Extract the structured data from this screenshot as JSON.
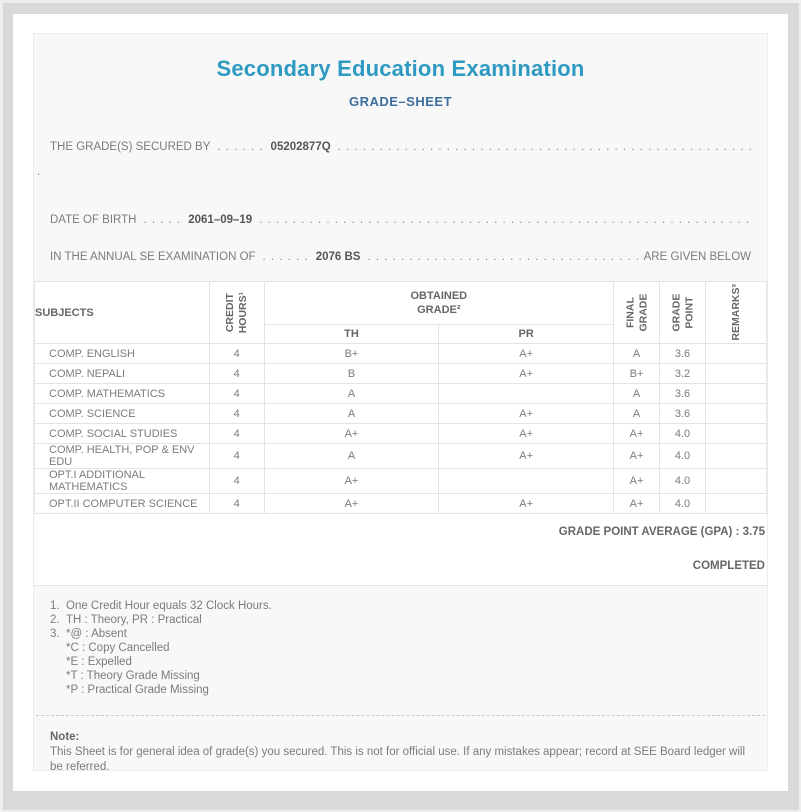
{
  "header": {
    "title": "Secondary Education Examination",
    "subtitle": "GRADE–SHEET"
  },
  "student": {
    "secured_by_label": "THE GRADE(S) SECURED BY",
    "secured_by_dots": ". . . . . .",
    "secured_by_value": "05202877Q",
    "secured_by_trail": ". . . . . . . . . . . . . . . . . . . . . . . . . . . . . . . . . . . . . . . . . . . . . . . . . . . . . . . . . . . . . . . . . . . . . . . . . . . . . . . . . . . . . . . . . . . . . . . . . . . . . . . . . . . . . . . .",
    "continuation_dot": ".",
    "dob_label": "DATE OF BIRTH",
    "dob_dots": ". . . . .",
    "dob_value": "2061–09–19",
    "dob_trail": ". . . . . . . . . . . . . . . . . . . . . . . . . . . . . . . . . . . . . . . . . . . . . . . . . . . . . . . . . . . . . . . . . . . . . . . . . . . . . . . . . . . . . . . . . . . . . . . . . . . . . . . . . . . . . . . .",
    "exam_label": "IN THE ANNUAL SE EXAMINATION OF",
    "exam_dots": ". . . . . .",
    "exam_value": "2076 BS",
    "exam_trail": ". . . . . . . . . . . . . . . . . . . . . . . . . . . . . . . . . . . . . . . . . . . . . . . . . . . . . . . . . . . . . . . . . . . . . . . . . . . . . . . . . . . . . . . . . . . .",
    "exam_suffix": "ARE GIVEN BELOW"
  },
  "table": {
    "headers": {
      "subjects": "SUBJECTS",
      "credit_hours": "CREDIT\nHOURS¹",
      "obtained_grade": "OBTAINED\nGRADE²",
      "th": "TH",
      "pr": "PR",
      "final_grade": "FINAL\nGRADE",
      "grade_point": "GRADE\nPOINT",
      "remarks": "REMARKS³"
    },
    "rows": [
      {
        "subject": "COMP. ENGLISH",
        "credit": "4",
        "th": "B+",
        "pr": "A+",
        "final": "A",
        "gp": "3.6",
        "remarks": ""
      },
      {
        "subject": "COMP. NEPALI",
        "credit": "4",
        "th": "B",
        "pr": "A+",
        "final": "B+",
        "gp": "3.2",
        "remarks": ""
      },
      {
        "subject": "COMP. MATHEMATICS",
        "credit": "4",
        "th": "A",
        "pr": "",
        "final": "A",
        "gp": "3.6",
        "remarks": ""
      },
      {
        "subject": "COMP. SCIENCE",
        "credit": "4",
        "th": "A",
        "pr": "A+",
        "final": "A",
        "gp": "3.6",
        "remarks": ""
      },
      {
        "subject": "COMP. SOCIAL STUDIES",
        "credit": "4",
        "th": "A+",
        "pr": "A+",
        "final": "A+",
        "gp": "4.0",
        "remarks": ""
      },
      {
        "subject": "COMP. HEALTH, POP & ENV EDU",
        "credit": "4",
        "th": "A",
        "pr": "A+",
        "final": "A+",
        "gp": "4.0",
        "remarks": ""
      },
      {
        "subject": "OPT.I ADDITIONAL MATHEMATICS",
        "credit": "4",
        "th": "A+",
        "pr": "",
        "final": "A+",
        "gp": "4.0",
        "remarks": ""
      },
      {
        "subject": "OPT.II COMPUTER SCIENCE",
        "credit": "4",
        "th": "A+",
        "pr": "A+",
        "final": "A+",
        "gp": "4.0",
        "remarks": ""
      }
    ]
  },
  "summary": {
    "gpa_label": "GRADE POINT AVERAGE (GPA) :",
    "gpa_value": "3.75",
    "status": "COMPLETED"
  },
  "footnotes": [
    {
      "num": "1.",
      "text": "One Credit Hour equals 32 Clock Hours."
    },
    {
      "num": "2.",
      "text": "TH : Theory, PR : Practical"
    },
    {
      "num": "3.",
      "text": "*@ : Absent"
    },
    {
      "num": "",
      "text": "*C : Copy Cancelled"
    },
    {
      "num": "",
      "text": "*E : Expelled"
    },
    {
      "num": "",
      "text": "*T : Theory Grade Missing"
    },
    {
      "num": "",
      "text": "*P : Practical Grade Missing"
    }
  ],
  "note": {
    "heading": "Note:",
    "text": "This Sheet is for general idea of grade(s) you secured. This is not for official use. If any mistakes appear; record at SEE Board ledger will be referred."
  },
  "colors": {
    "title_accent": "#2e9ac2",
    "subtitle_accent": "#3b6e9e",
    "frame_gray": "#d9d9d9",
    "panel_bg": "#f8f8f8"
  }
}
